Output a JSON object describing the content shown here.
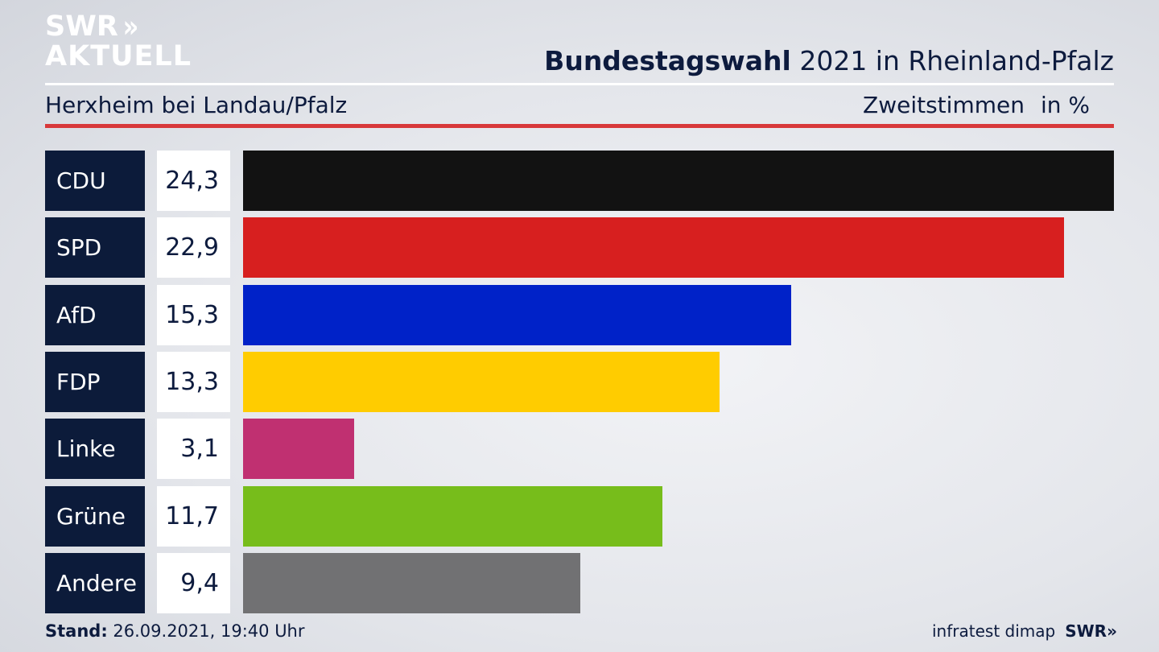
{
  "brand": {
    "line1": "SWR",
    "line2": "AKTUELL",
    "chevrons": "»"
  },
  "header": {
    "title_bold": "Bundestagswahl",
    "title_rest": "2021 in Rheinland-Pfalz",
    "location": "Herxheim bei Landau/Pfalz",
    "measure": "Zweitstimmen",
    "unit": "in %"
  },
  "footer": {
    "stand_label": "Stand:",
    "stand_value": "26.09.2021, 19:40 Uhr",
    "source": "infratest dimap",
    "logo": "SWR",
    "logo_chevrons": "»"
  },
  "chart_data": {
    "type": "bar",
    "orientation": "horizontal",
    "categories": [
      "CDU",
      "SPD",
      "AfD",
      "FDP",
      "Linke",
      "Grüne",
      "Andere"
    ],
    "values": [
      24.3,
      22.9,
      15.3,
      13.3,
      3.1,
      11.7,
      9.4
    ],
    "value_labels": [
      "24,3",
      "22,9",
      "15,3",
      "13,3",
      "3,1",
      "11,7",
      "9,4"
    ],
    "colors": [
      "#121212",
      "#d71f1f",
      "#0022c8",
      "#ffcc00",
      "#c03071",
      "#77bd1b",
      "#717173"
    ],
    "xlim": [
      0,
      24.3
    ],
    "title": "Bundestagswahl 2021 in Rheinland-Pfalz",
    "subtitle": "Herxheim bei Landau/Pfalz",
    "xlabel": "",
    "ylabel": ""
  }
}
